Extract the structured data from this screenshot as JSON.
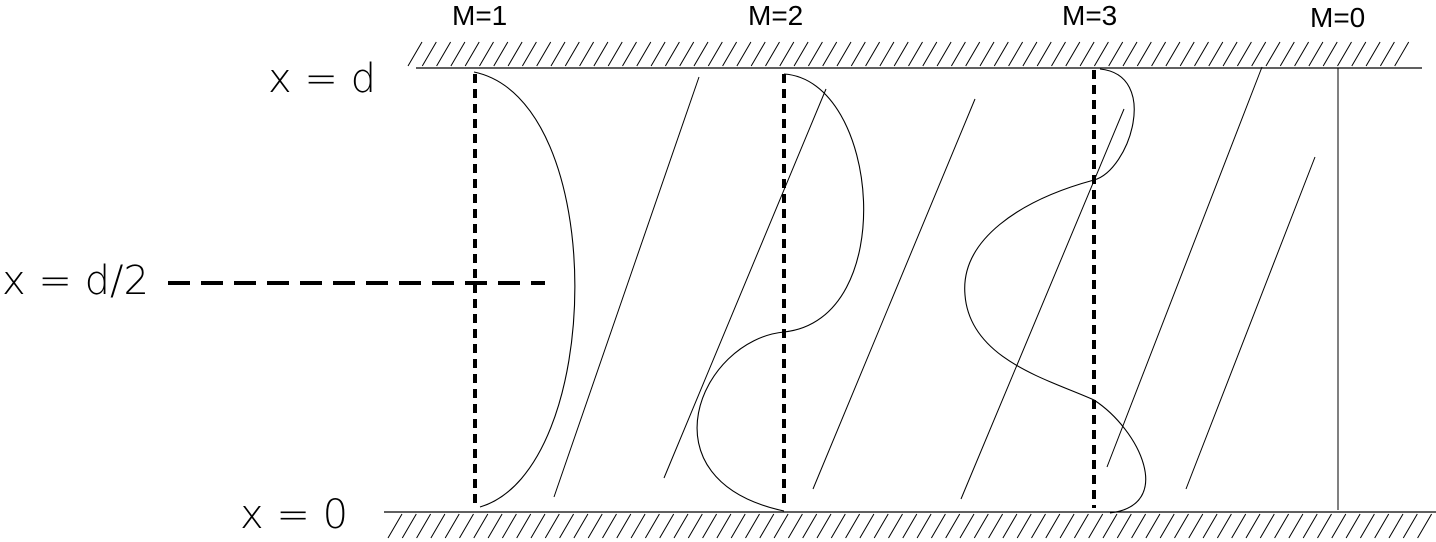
{
  "modes": [
    {
      "label": "M=1"
    },
    {
      "label": "M=2"
    },
    {
      "label": "M=3"
    },
    {
      "label": "M=0"
    }
  ],
  "axis_labels": {
    "top": "x = d",
    "middle": "x = d/2",
    "bottom": "x = 0"
  }
}
